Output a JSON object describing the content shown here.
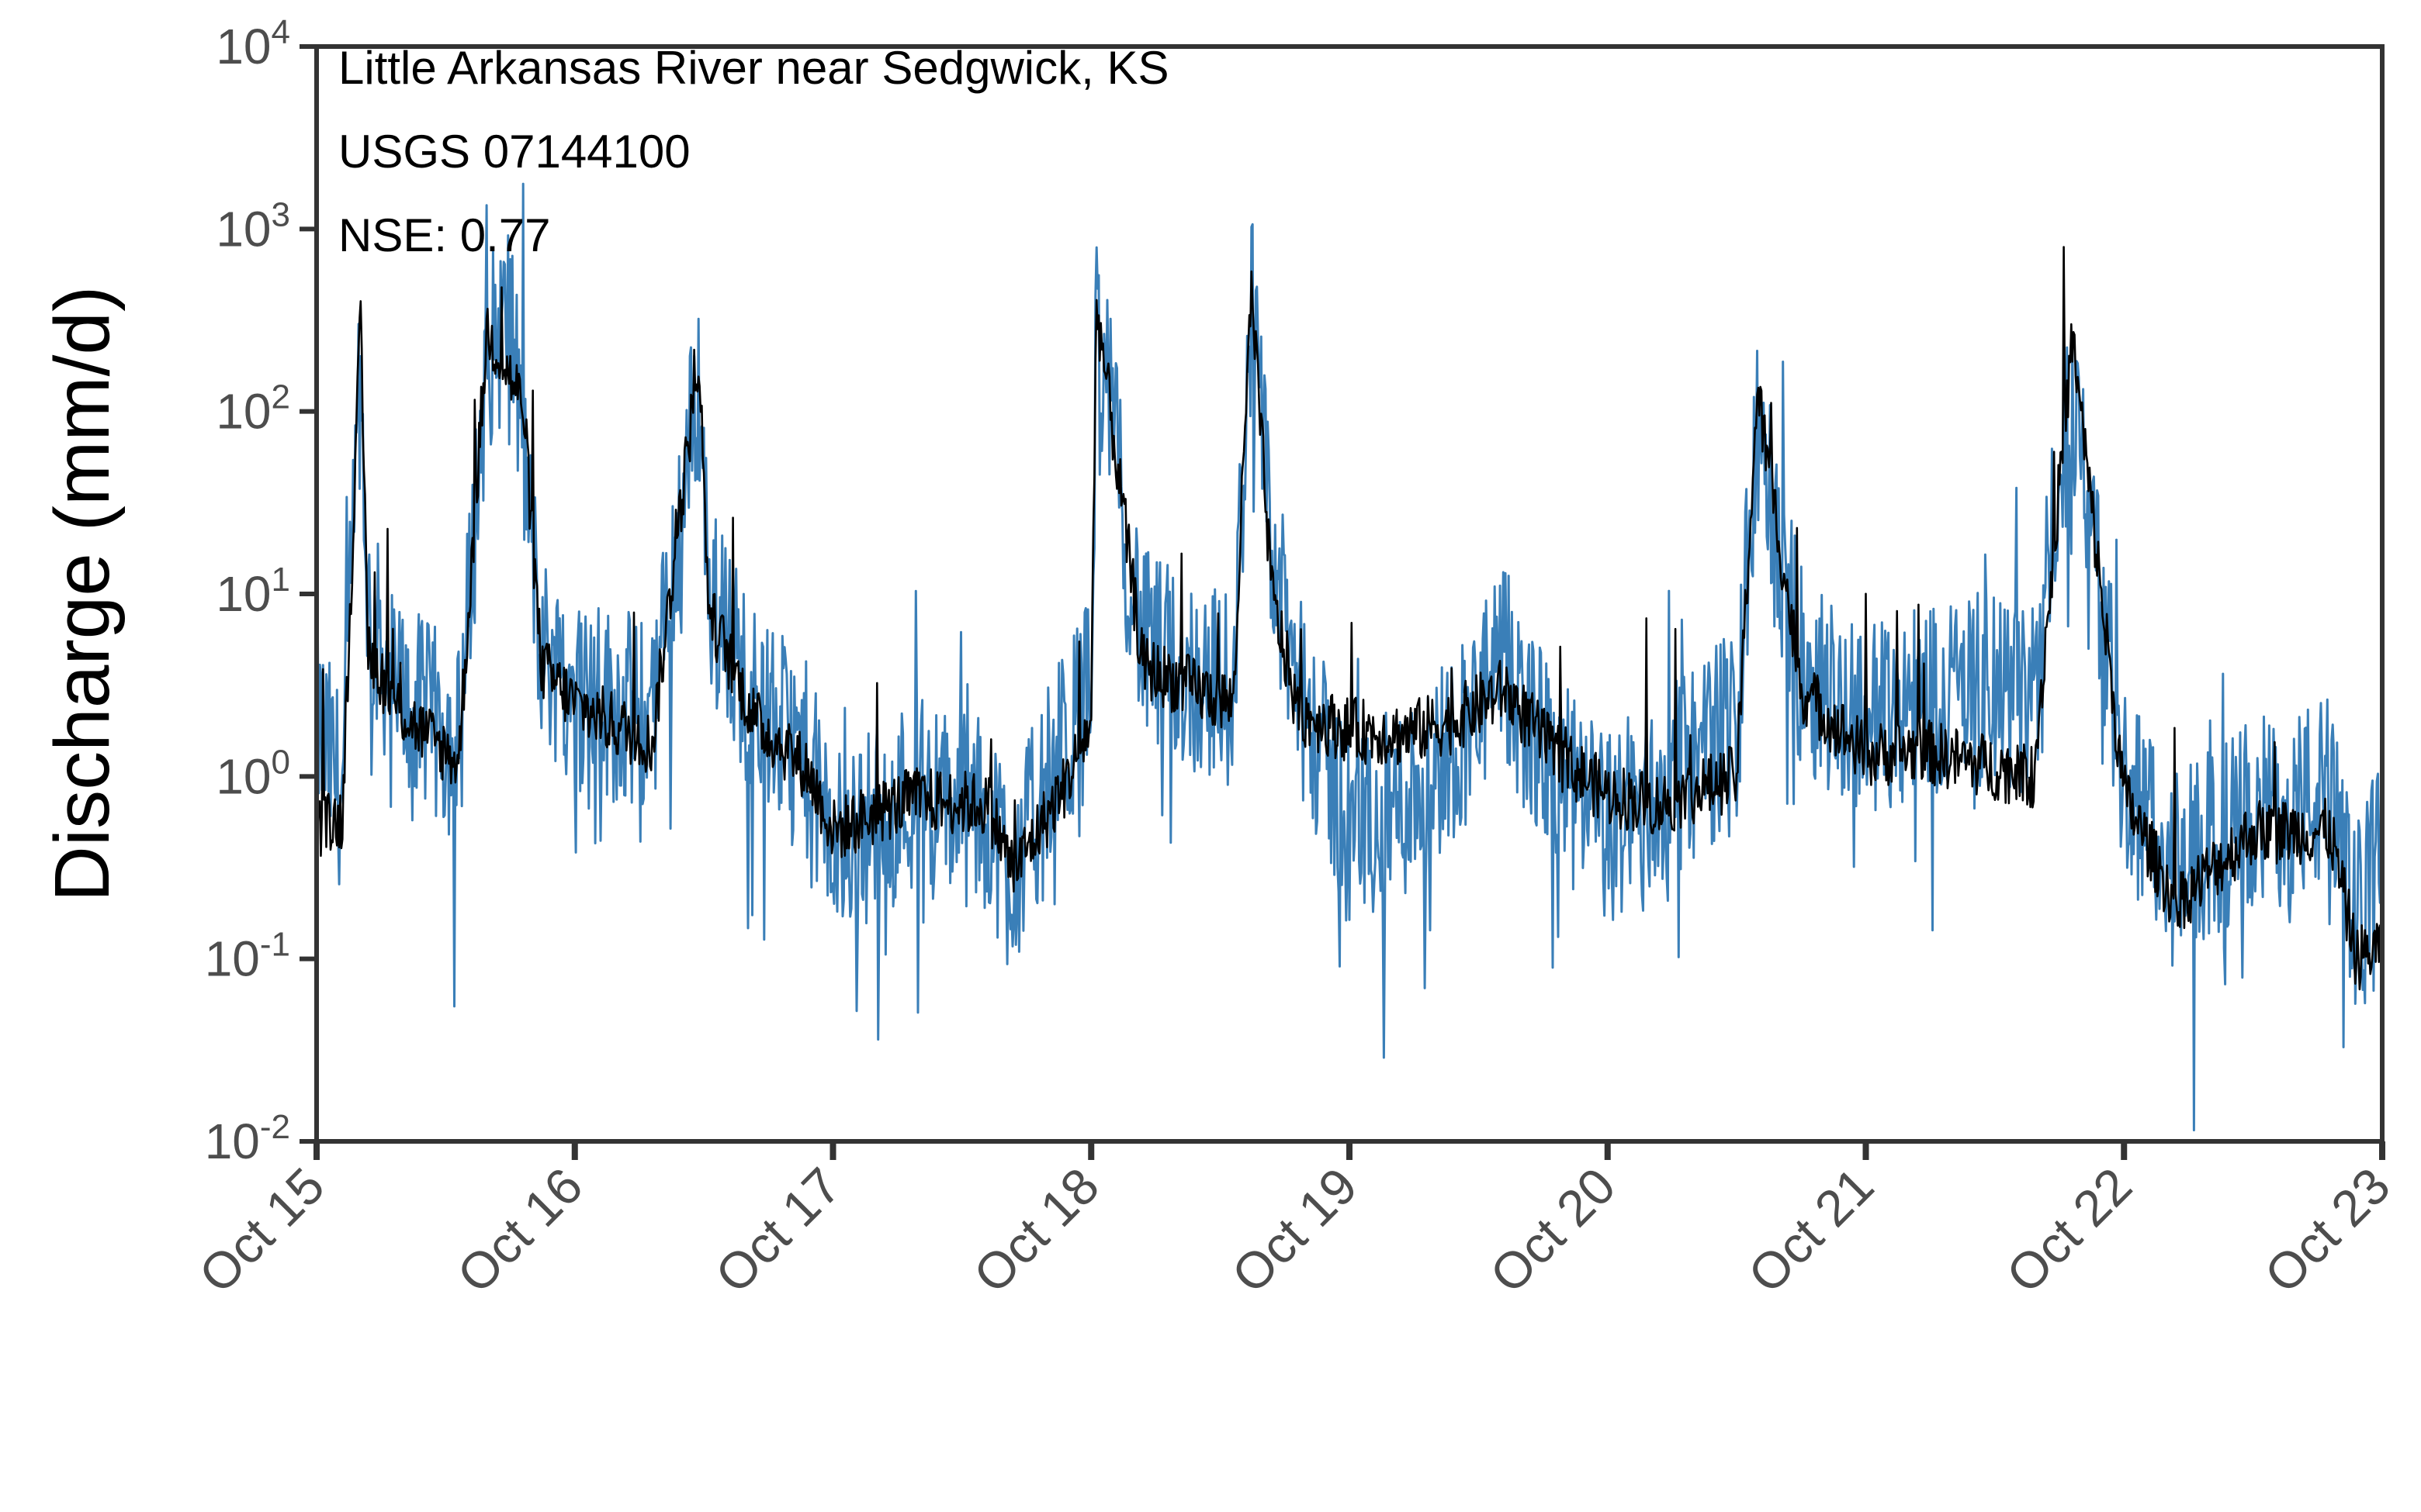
{
  "chart_data": {
    "type": "line",
    "annotations": [
      "Little Arkansas River near Sedgwick, KS",
      "USGS 07144100",
      "NSE: 0.77"
    ],
    "xlabel": "",
    "ylabel": "Discharge (mm/d)",
    "yscale": "log",
    "ylim": [
      0.01,
      10000
    ],
    "y_ticks": [
      {
        "base": "10",
        "exp": "-2",
        "value": 0.01
      },
      {
        "base": "10",
        "exp": "-1",
        "value": 0.1
      },
      {
        "base": "10",
        "exp": "0",
        "value": 1
      },
      {
        "base": "10",
        "exp": "1",
        "value": 10
      },
      {
        "base": "10",
        "exp": "2",
        "value": 100
      },
      {
        "base": "10",
        "exp": "3",
        "value": 1000
      },
      {
        "base": "10",
        "exp": "4",
        "value": 10000
      }
    ],
    "x_ticks": [
      "Oct 15",
      "Oct 16",
      "Oct 17",
      "Oct 18",
      "Oct 19",
      "Oct 20",
      "Oct 21",
      "Oct 22",
      "Oct 23"
    ],
    "xlim": [
      "Oct 15",
      "Oct 23"
    ],
    "grid": false,
    "legend": "none",
    "colors": {
      "observed": "#000000",
      "simulated": "#3a7fb8",
      "axis": "#333333",
      "tick_text": "#4d4d4d"
    },
    "series": [
      {
        "color": "#000000",
        "x": [
          "Oct 15.00",
          "Oct 15.10",
          "Oct 15.17",
          "Oct 15.20",
          "Oct 15.30",
          "Oct 15.40",
          "Oct 15.55",
          "Oct 15.66",
          "Oct 15.80",
          "Oct 15.87",
          "Oct 16.00",
          "Oct 16.30",
          "Oct 16.48",
          "Oct 16.52",
          "Oct 16.70",
          "Oct 16.90",
          "Oct 17.00",
          "Oct 17.30",
          "Oct 17.60",
          "Oct 17.70",
          "Oct 17.90",
          "Oct 18.00",
          "Oct 18.02",
          "Oct 18.20",
          "Oct 18.40",
          "Oct 18.55",
          "Oct 18.62",
          "Oct 18.70",
          "Oct 18.80",
          "Oct 19.00",
          "Oct 19.20",
          "Oct 19.40",
          "Oct 19.60",
          "Oct 19.80",
          "Oct 20.00",
          "Oct 20.20",
          "Oct 20.50",
          "Oct 20.58",
          "Oct 20.75",
          "Oct 21.00",
          "Oct 21.20",
          "Oct 21.40",
          "Oct 21.65",
          "Oct 21.80",
          "Oct 22.00",
          "Oct 22.20",
          "Oct 22.50",
          "Oct 22.80",
          "Oct 22.90",
          "Oct 23.00"
        ],
        "values": [
          0.5,
          0.6,
          300,
          5,
          2.5,
          1.8,
          1.2,
          280,
          110,
          4,
          2.5,
          1.5,
          200,
          8,
          2,
          1.1,
          0.5,
          0.75,
          0.7,
          0.3,
          0.9,
          2,
          400,
          4,
          3,
          2.5,
          450,
          10,
          2.2,
          1.8,
          1.7,
          2,
          3,
          1.3,
          0.8,
          0.7,
          1,
          130,
          3,
          1.3,
          1.4,
          1.2,
          1,
          250,
          0.8,
          0.2,
          0.5,
          0.5,
          0.1,
          0.12
        ]
      },
      {
        "color": "#3a7fb8",
        "x": [
          "Oct 15.00",
          "Oct 15.10",
          "Oct 15.17",
          "Oct 15.20",
          "Oct 15.30",
          "Oct 15.40",
          "Oct 15.55",
          "Oct 15.66",
          "Oct 15.75",
          "Oct 15.87",
          "Oct 16.00",
          "Oct 16.30",
          "Oct 16.48",
          "Oct 16.52",
          "Oct 16.70",
          "Oct 16.90",
          "Oct 17.00",
          "Oct 17.30",
          "Oct 17.60",
          "Oct 17.70",
          "Oct 17.90",
          "Oct 18.00",
          "Oct 18.02",
          "Oct 18.20",
          "Oct 18.40",
          "Oct 18.55",
          "Oct 18.62",
          "Oct 18.70",
          "Oct 18.80",
          "Oct 19.00",
          "Oct 19.20",
          "Oct 19.40",
          "Oct 19.60",
          "Oct 19.80",
          "Oct 20.00",
          "Oct 20.20",
          "Oct 20.50",
          "Oct 20.58",
          "Oct 20.75",
          "Oct 21.00",
          "Oct 21.20",
          "Oct 21.40",
          "Oct 21.65",
          "Oct 21.80",
          "Oct 22.00",
          "Oct 22.20",
          "Oct 22.50",
          "Oct 22.80",
          "Oct 22.90",
          "Oct 23.00"
        ],
        "values": [
          2,
          0.8,
          150,
          8,
          3,
          2.2,
          1.5,
          200,
          350,
          5,
          3,
          2,
          150,
          10,
          2.5,
          1.2,
          0.4,
          0.8,
          0.6,
          0.3,
          1.5,
          3,
          350,
          5,
          3.5,
          3,
          400,
          15,
          3,
          0.5,
          0.7,
          1.5,
          4,
          1,
          0.5,
          0.8,
          2,
          70,
          4,
          2,
          2.8,
          3,
          2.6,
          150,
          1,
          0.3,
          0.6,
          0.8,
          0.15,
          0.5
        ]
      }
    ]
  }
}
